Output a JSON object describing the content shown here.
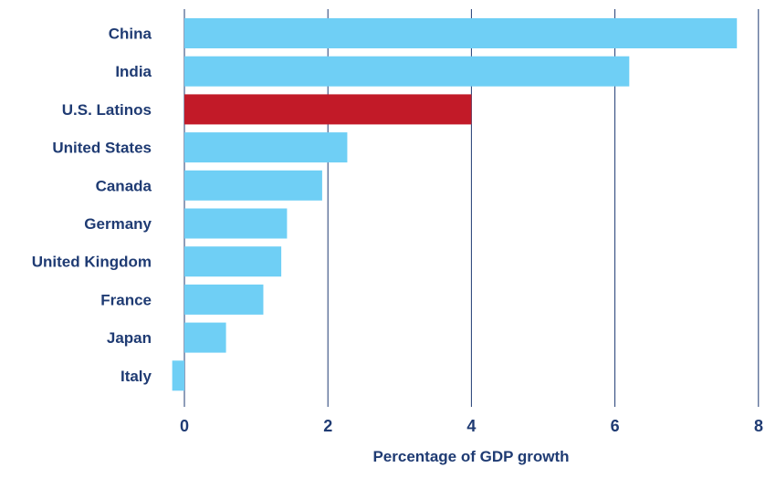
{
  "chart_data": {
    "type": "bar",
    "orientation": "horizontal",
    "categories": [
      "China",
      "India",
      "U.S. Latinos",
      "United States",
      "Canada",
      "Germany",
      "United Kingdom",
      "France",
      "Japan",
      "Italy"
    ],
    "values": [
      7.7,
      6.2,
      4.0,
      2.27,
      1.92,
      1.43,
      1.35,
      1.1,
      0.58,
      -0.17
    ],
    "highlight": "U.S. Latinos",
    "title": "",
    "xlabel": "Percentage of GDP growth",
    "ylabel": "",
    "xlim": [
      0,
      8
    ],
    "xticks": [
      0,
      2,
      4,
      6,
      8
    ],
    "grid": "vertical",
    "legend": "none",
    "colors": {
      "bar": "#6fcff5",
      "highlight": "#c21a28",
      "gridline": "#1f3b73",
      "text": "#1f3b73"
    }
  }
}
